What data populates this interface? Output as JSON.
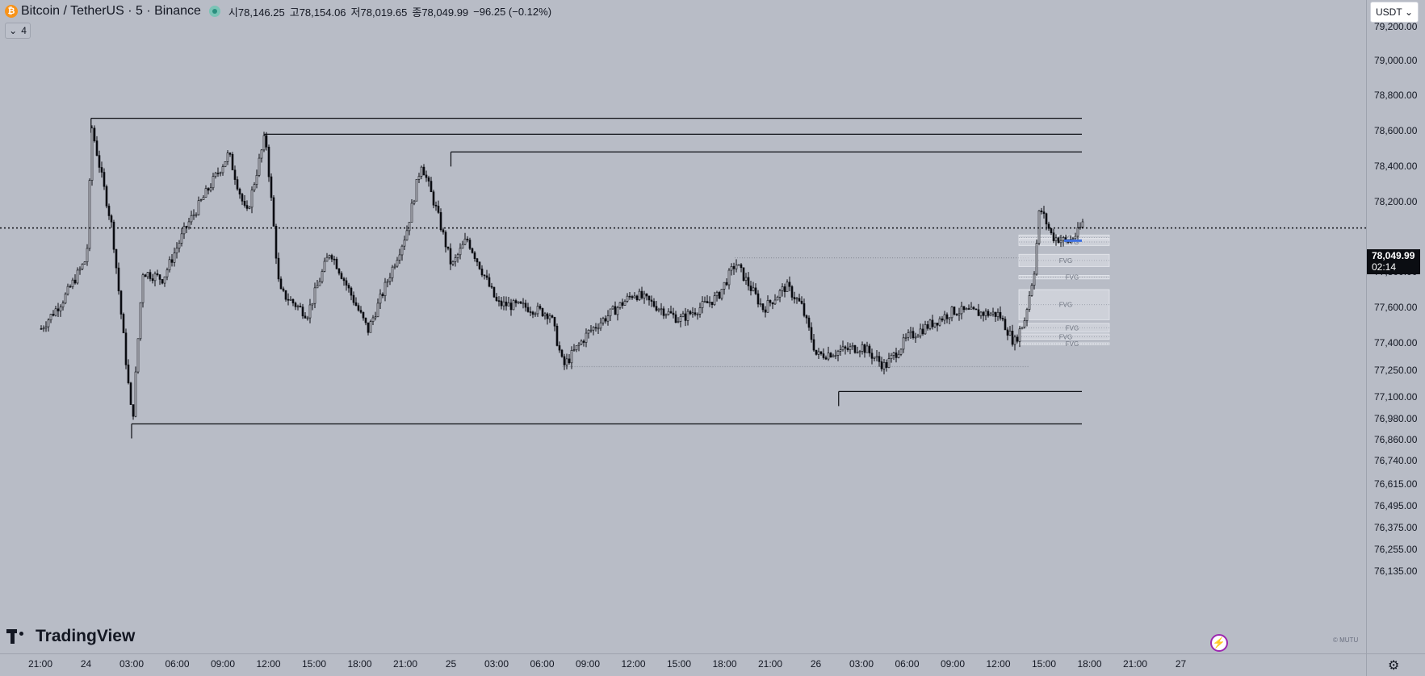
{
  "header": {
    "coin_glyph": "₿",
    "symbol": "Bitcoin / TetherUS · 5 · Binance",
    "ohlc": [
      {
        "label": "시",
        "value": "78,146.25"
      },
      {
        "label": "고",
        "value": "78,154.06"
      },
      {
        "label": "저",
        "value": "78,019.65"
      },
      {
        "label": "종",
        "value": "78,049.99"
      }
    ],
    "change": "−96.25 (−0.12%)",
    "indicator_count": "4",
    "currency": "USDT"
  },
  "price_axis": {
    "labels": [
      "79,200.00",
      "79,000.00",
      "78,800.00",
      "78,600.00",
      "78,400.00",
      "78,200.00",
      "77,800.00",
      "77,600.00",
      "77,400.00",
      "77,250.00",
      "77,100.00",
      "76,980.00",
      "76,860.00",
      "76,740.00",
      "76,615.00",
      "76,495.00",
      "76,375.00",
      "76,255.00",
      "76,135.00"
    ],
    "last_price": "78,049.99",
    "countdown": "02:14"
  },
  "time_axis": {
    "labels": [
      "21:00",
      "24",
      "03:00",
      "06:00",
      "09:00",
      "12:00",
      "15:00",
      "18:00",
      "21:00",
      "25",
      "03:00",
      "06:00",
      "09:00",
      "12:00",
      "15:00",
      "18:00",
      "21:00",
      "26",
      "03:00",
      "06:00",
      "09:00",
      "12:00",
      "15:00",
      "18:00",
      "21:00",
      "27"
    ]
  },
  "branding": {
    "logo_text": "TradingView",
    "watermark": "© MUTU"
  },
  "colors": {
    "background": "#b8bcc6",
    "candle": "#0b0d12",
    "last_price_tag": "#0b0d12",
    "fvg_fill": "#d5d8df",
    "highlight": "#3d6fe0",
    "bitcoin": "#f7931a"
  },
  "chart_data": {
    "type": "candlestick",
    "title": "Bitcoin / TetherUS · 5 · Binance",
    "interval": "5m",
    "price_range": [
      76135,
      79200
    ],
    "last_price": 78049.99,
    "price_path": [
      [
        "21:00",
        77480
      ],
      [
        "22:30",
        77650
      ],
      [
        "24 00:00",
        77880
      ],
      [
        "24 00:20",
        78620
      ],
      [
        "24 01:00",
        78330
      ],
      [
        "24 01:40",
        78050
      ],
      [
        "24 03:00",
        76950
      ],
      [
        "24 03:40",
        77800
      ],
      [
        "24 05:00",
        77760
      ],
      [
        "24 06:30",
        78050
      ],
      [
        "24 09:00",
        78420
      ],
      [
        "24 09:20",
        78470
      ],
      [
        "24 10:30",
        78120
      ],
      [
        "24 11:45",
        78580
      ],
      [
        "24 12:40",
        77690
      ],
      [
        "24 14:30",
        77560
      ],
      [
        "24 16:00",
        77920
      ],
      [
        "24 18:30",
        77470
      ],
      [
        "24 21:00",
        78020
      ],
      [
        "24 22:00",
        78420
      ],
      [
        "24 23:00",
        78150
      ],
      [
        "25 00:00",
        77830
      ],
      [
        "25 01:00",
        77990
      ],
      [
        "25 03:00",
        77620
      ],
      [
        "25 05:00",
        77600
      ],
      [
        "25 06:30",
        77560
      ],
      [
        "25 07:20",
        77270
      ],
      [
        "25 09:00",
        77460
      ],
      [
        "25 12:00",
        77680
      ],
      [
        "25 15:00",
        77530
      ],
      [
        "25 17:30",
        77660
      ],
      [
        "25 18:40",
        77850
      ],
      [
        "25 20:30",
        77590
      ],
      [
        "25 22:00",
        77720
      ],
      [
        "25 23:00",
        77610
      ],
      [
        "26 00:00",
        77330
      ],
      [
        "26 03:00",
        77380
      ],
      [
        "26 04:30",
        77270
      ],
      [
        "26 06:00",
        77430
      ],
      [
        "26 09:00",
        77580
      ],
      [
        "26 12:00",
        77560
      ],
      [
        "26 13:00",
        77400
      ],
      [
        "26 13:40",
        77530
      ],
      [
        "26 14:20",
        77820
      ],
      [
        "26 14:40",
        78170
      ],
      [
        "26 15:30",
        78000
      ],
      [
        "26 16:30",
        77970
      ],
      [
        "26 17:10",
        78020
      ],
      [
        "26 17:30",
        78080
      ],
      [
        "26 17:50",
        78049.99
      ]
    ],
    "levels": [
      {
        "price": 78670,
        "from": "24 00:20",
        "style": "solid"
      },
      {
        "price": 78580,
        "from": "24 11:45",
        "style": "solid"
      },
      {
        "price": 78480,
        "from": "25 00:00",
        "style": "solid"
      },
      {
        "price": 77880,
        "from": "25 18:40",
        "style": "dotted"
      },
      {
        "price": 77270,
        "from": "25 07:20",
        "style": "dotted"
      },
      {
        "price": 77130,
        "from": "26 01:30",
        "style": "solid"
      },
      {
        "price": 76950,
        "from": "24 03:00",
        "style": "solid"
      }
    ],
    "fvg_zones": [
      {
        "label": "FVG",
        "top": 78010,
        "bottom": 77980
      },
      {
        "label": "FVG",
        "top": 77990,
        "bottom": 77950
      },
      {
        "label": "FVG",
        "top": 77900,
        "bottom": 77830
      },
      {
        "label": "FVG",
        "top": 77780,
        "bottom": 77760
      },
      {
        "label": "FVG",
        "top": 77700,
        "bottom": 77530
      },
      {
        "label": "FVG",
        "top": 77510,
        "bottom": 77460
      },
      {
        "label": "FVG",
        "top": 77450,
        "bottom": 77420
      },
      {
        "label": "FVG",
        "top": 77400,
        "bottom": 77390
      }
    ],
    "grid": false,
    "legend": "top-left"
  }
}
